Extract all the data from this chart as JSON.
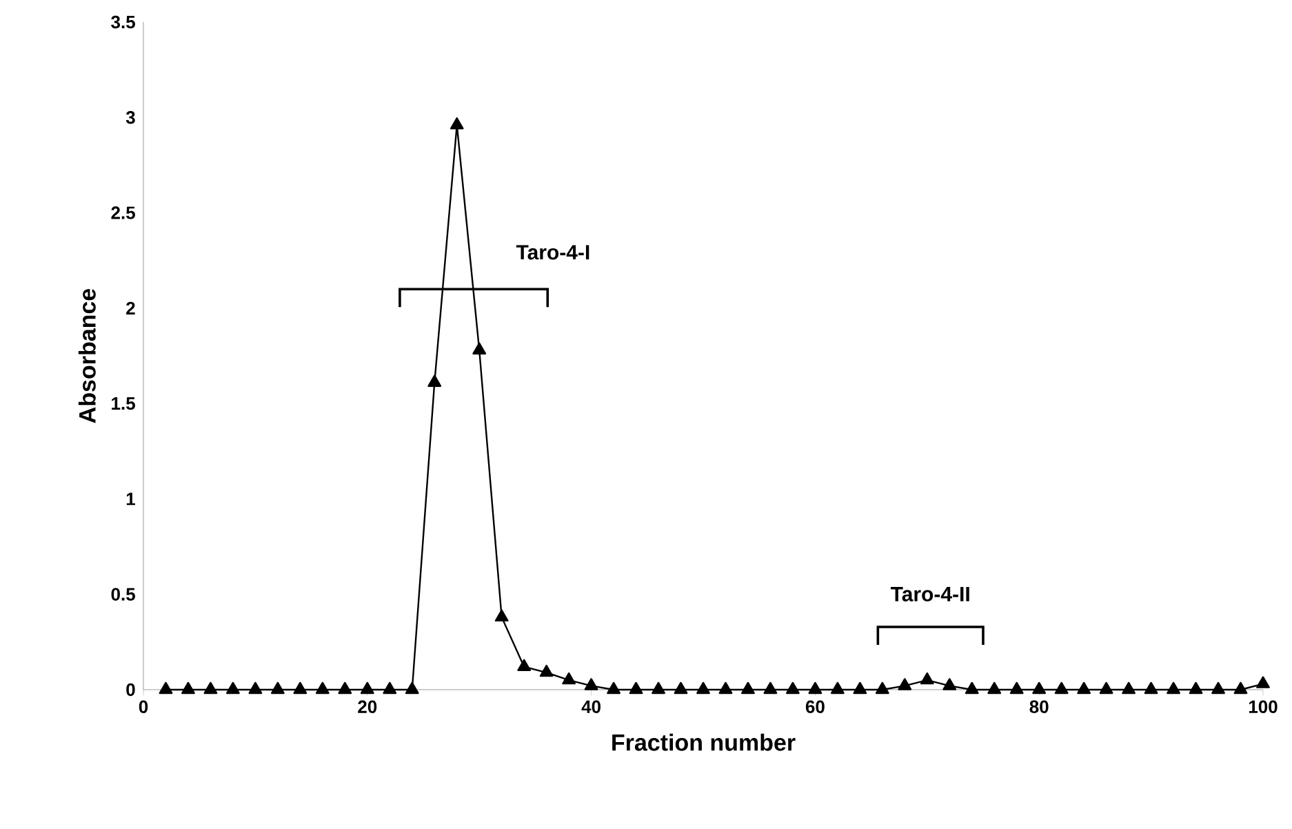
{
  "chart_data": {
    "type": "line",
    "xlabel": "Fraction number",
    "ylabel": "Absorbance",
    "x": [
      2,
      4,
      6,
      8,
      10,
      12,
      14,
      16,
      18,
      20,
      22,
      24,
      26,
      28,
      30,
      32,
      34,
      36,
      38,
      40,
      42,
      44,
      46,
      48,
      50,
      52,
      54,
      56,
      58,
      60,
      62,
      64,
      66,
      68,
      70,
      72,
      74,
      76,
      78,
      80,
      82,
      84,
      86,
      88,
      90,
      92,
      94,
      96,
      98,
      100
    ],
    "series": [
      {
        "color": "#000000",
        "values": [
          0,
          0,
          0,
          0,
          0,
          0,
          0,
          0,
          0,
          0,
          0,
          0,
          1.61,
          2.96,
          1.78,
          0.38,
          0.12,
          0.09,
          0.05,
          0.02,
          0,
          0,
          0,
          0,
          0,
          0,
          0,
          0,
          0,
          0,
          0,
          0,
          0,
          0.02,
          0.05,
          0.02,
          0,
          0,
          0,
          0,
          0,
          0,
          0,
          0,
          0,
          0,
          0,
          0,
          0,
          0.03
        ]
      }
    ],
    "xlim": [
      0,
      100
    ],
    "ylim": [
      0,
      3.5
    ],
    "xticks": [
      0,
      20,
      40,
      60,
      80,
      100
    ],
    "yticks": [
      0,
      0.5,
      1,
      1.5,
      2,
      2.5,
      3,
      3.5
    ],
    "marker": "triangle",
    "line_style": "solid",
    "grid": false,
    "annotations": [
      "Taro-4-I",
      "Taro-4-II"
    ]
  }
}
